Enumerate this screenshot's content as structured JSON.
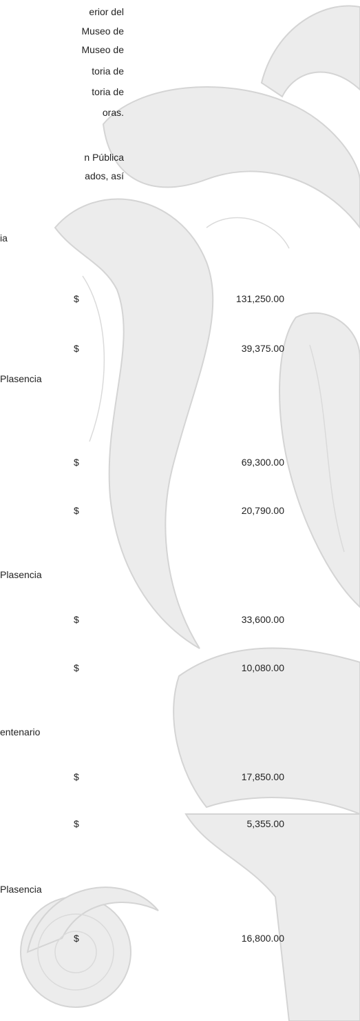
{
  "paragraphs": [
    {
      "lines": [
        "erior del",
        "Museo de",
        "Museo de",
        "toria de",
        "toria de",
        "oras."
      ]
    },
    {
      "lines": [
        "n Pública",
        "ados, así"
      ]
    }
  ],
  "sections": [
    {
      "heading": "ia",
      "amounts": [
        {
          "currency": "$",
          "amount": "131,250.00"
        },
        {
          "currency": "$",
          "amount": "39,375.00"
        }
      ]
    },
    {
      "heading": "Plasencia",
      "amounts": [
        {
          "currency": "$",
          "amount": "69,300.00"
        },
        {
          "currency": "$",
          "amount": "20,790.00"
        }
      ]
    },
    {
      "heading": "Plasencia",
      "amounts": [
        {
          "currency": "$",
          "amount": "33,600.00"
        },
        {
          "currency": "$",
          "amount": "10,080.00"
        }
      ]
    },
    {
      "heading": "entenario",
      "amounts": [
        {
          "currency": "$",
          "amount": "17,850.00"
        },
        {
          "currency": "$",
          "amount": "5,355.00"
        }
      ]
    },
    {
      "heading": "Plasencia",
      "amounts": [
        {
          "currency": "$",
          "amount": "16,800.00"
        }
      ]
    }
  ]
}
